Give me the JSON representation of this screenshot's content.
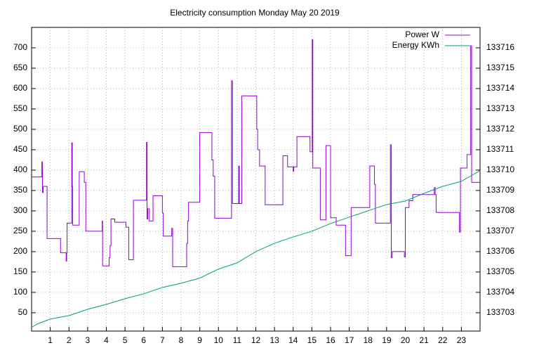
{
  "chart_data": {
    "type": "line",
    "title": "Electricity consumption Monday May 20 2019",
    "xlim": [
      0,
      24
    ],
    "xticks": [
      1,
      2,
      3,
      4,
      5,
      6,
      7,
      8,
      9,
      10,
      11,
      12,
      13,
      14,
      15,
      16,
      17,
      18,
      19,
      20,
      21,
      22,
      23
    ],
    "ylim": [
      5,
      750
    ],
    "yticks": [
      50,
      100,
      150,
      200,
      250,
      300,
      350,
      400,
      450,
      500,
      550,
      600,
      650,
      700
    ],
    "y2lim": [
      133702.1,
      133717
    ],
    "y2ticks": [
      133703,
      133704,
      133705,
      133706,
      133707,
      133708,
      133709,
      133710,
      133711,
      133712,
      133713,
      133714,
      133715,
      133716
    ],
    "grid": true,
    "legend": "top-right",
    "series": [
      {
        "name": "Power W",
        "color": "#9400d3",
        "step": true,
        "x": [
          0,
          0.55,
          0.58,
          0.62,
          0.83,
          1.55,
          1.85,
          1.88,
          1.9,
          2.15,
          2.18,
          2.2,
          2.55,
          2.82,
          2.9,
          3.78,
          3.8,
          4.15,
          4.2,
          4.25,
          4.45,
          5.05,
          5.2,
          5.45,
          6.15,
          6.18,
          6.22,
          6.3,
          6.5,
          7.0,
          7.05,
          7.5,
          7.55,
          8.3,
          8.35,
          8.4,
          9.0,
          9.65,
          9.72,
          9.8,
          10.7,
          10.75,
          11.08,
          11.12,
          11.25,
          12.05,
          12.1,
          12.2,
          12.5,
          13.45,
          13.7,
          14.0,
          14.03,
          14.2,
          14.9,
          15.02,
          15.05,
          15.45,
          15.75,
          16.0,
          16.3,
          16.8,
          17.1,
          18.1,
          18.35,
          18.4,
          19.2,
          19.25,
          19.3,
          19.95,
          20.0,
          20.2,
          20.4,
          21.55,
          21.6,
          21.65,
          22.9,
          22.95,
          23.3,
          23.5,
          23.55,
          24
        ],
        "values": [
          383,
          420,
          345,
          360,
          232,
          197,
          177,
          197,
          270,
          467,
          360,
          265,
          396,
          370,
          250,
          275,
          165,
          185,
          215,
          280,
          272,
          260,
          180,
          326,
          468,
          280,
          305,
          275,
          337,
          295,
          238,
          257,
          163,
          220,
          275,
          321,
          492,
          425,
          385,
          282,
          619,
          318,
          410,
          318,
          582,
          500,
          450,
          410,
          315,
          435,
          408,
          397,
          408,
          482,
          445,
          720,
          405,
          278,
          460,
          283,
          265,
          190,
          308,
          410,
          365,
          270,
          462,
          185,
          200,
          187,
          308,
          325,
          340,
          357,
          340,
          296,
          248,
          405,
          438,
          705,
          370,
          370
        ]
      },
      {
        "name": "Energy KWh",
        "color": "#009e73",
        "axis": "y2",
        "x": [
          0,
          0.3,
          1,
          2,
          3,
          4,
          5,
          6,
          7,
          8,
          9,
          10,
          11,
          12,
          13,
          14,
          15,
          16,
          17,
          18,
          19,
          20,
          21,
          22,
          23,
          24
        ],
        "values": [
          133702.28,
          133702.45,
          133702.69,
          133702.86,
          133703.17,
          133703.41,
          133703.69,
          133703.93,
          133704.24,
          133704.45,
          133704.7,
          133705.14,
          133705.45,
          133706.0,
          133706.41,
          133706.72,
          133707.0,
          133707.38,
          133707.69,
          133708.0,
          133708.31,
          133708.48,
          133708.86,
          133709.2,
          133709.45,
          133709.97
        ]
      }
    ]
  }
}
